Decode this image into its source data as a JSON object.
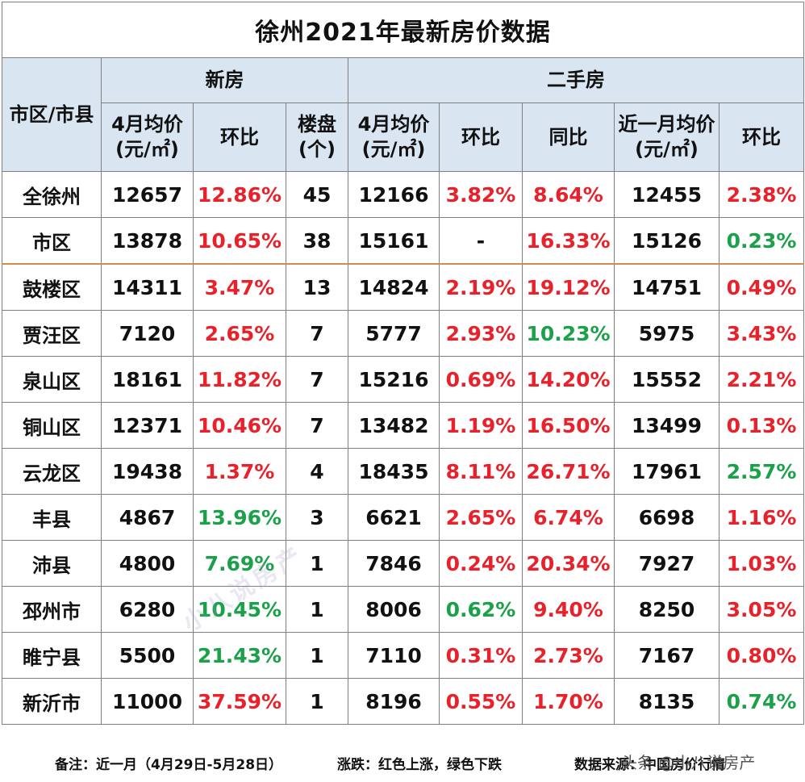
{
  "title": "徐州2021年最新房价数据",
  "header": {
    "region": "市区/市县",
    "new_group": "新房",
    "second_group": "二手房",
    "new_cols": [
      "4月均价(元/㎡)",
      "环比",
      "楼盘(个)"
    ],
    "second_cols": [
      "4月均价(元/㎡)",
      "环比",
      "同比",
      "近一月均价(元/㎡)",
      "环比"
    ]
  },
  "colors": {
    "red": "#e8212a",
    "green": "#1ba14a",
    "header_bg": "#d9e6f2"
  },
  "rows": [
    {
      "name": "全徐州",
      "cells": [
        "12657",
        "12.86%",
        "45",
        "12166",
        "3.82%",
        "8.64%",
        "12455",
        "2.38%"
      ],
      "colors": [
        "black",
        "red",
        "black",
        "black",
        "red",
        "red",
        "black",
        "red"
      ]
    },
    {
      "name": "市区",
      "cells": [
        "13878",
        "10.65%",
        "38",
        "15161",
        "-",
        "16.33%",
        "15126",
        "0.23%"
      ],
      "colors": [
        "black",
        "red",
        "black",
        "black",
        "black",
        "red",
        "black",
        "green"
      ]
    },
    {
      "name": "鼓楼区",
      "cells": [
        "14311",
        "3.47%",
        "13",
        "14824",
        "2.19%",
        "19.12%",
        "14751",
        "0.49%"
      ],
      "colors": [
        "black",
        "red",
        "black",
        "black",
        "red",
        "red",
        "black",
        "red"
      ]
    },
    {
      "name": "贾汪区",
      "cells": [
        "7120",
        "2.65%",
        "7",
        "5777",
        "2.93%",
        "10.23%",
        "5975",
        "3.43%"
      ],
      "colors": [
        "black",
        "red",
        "black",
        "black",
        "red",
        "green",
        "black",
        "red"
      ]
    },
    {
      "name": "泉山区",
      "cells": [
        "18161",
        "11.82%",
        "7",
        "15216",
        "0.69%",
        "14.20%",
        "15552",
        "2.21%"
      ],
      "colors": [
        "black",
        "red",
        "black",
        "black",
        "red",
        "red",
        "black",
        "red"
      ]
    },
    {
      "name": "铜山区",
      "cells": [
        "12371",
        "10.46%",
        "7",
        "13482",
        "1.19%",
        "16.50%",
        "13499",
        "0.13%"
      ],
      "colors": [
        "black",
        "red",
        "black",
        "black",
        "red",
        "red",
        "black",
        "red"
      ]
    },
    {
      "name": "云龙区",
      "cells": [
        "19438",
        "1.37%",
        "4",
        "18435",
        "8.11%",
        "26.71%",
        "17961",
        "2.57%"
      ],
      "colors": [
        "black",
        "red",
        "black",
        "black",
        "red",
        "red",
        "black",
        "green"
      ]
    },
    {
      "name": "丰县",
      "cells": [
        "4867",
        "13.96%",
        "3",
        "6621",
        "2.65%",
        "6.74%",
        "6698",
        "1.16%"
      ],
      "colors": [
        "black",
        "green",
        "black",
        "black",
        "red",
        "red",
        "black",
        "red"
      ]
    },
    {
      "name": "沛县",
      "cells": [
        "4800",
        "7.69%",
        "1",
        "7846",
        "0.24%",
        "20.34%",
        "7927",
        "1.03%"
      ],
      "colors": [
        "black",
        "green",
        "black",
        "black",
        "red",
        "red",
        "black",
        "red"
      ]
    },
    {
      "name": "邳州市",
      "cells": [
        "6280",
        "10.45%",
        "1",
        "8006",
        "0.62%",
        "9.40%",
        "8250",
        "3.05%"
      ],
      "colors": [
        "black",
        "green",
        "black",
        "black",
        "green",
        "red",
        "black",
        "red"
      ]
    },
    {
      "name": "睢宁县",
      "cells": [
        "5500",
        "21.43%",
        "1",
        "7110",
        "0.31%",
        "2.73%",
        "7167",
        "0.80%"
      ],
      "colors": [
        "black",
        "green",
        "black",
        "black",
        "red",
        "red",
        "black",
        "red"
      ]
    },
    {
      "name": "新沂市",
      "cells": [
        "11000",
        "37.59%",
        "1",
        "8196",
        "0.55%",
        "1.70%",
        "8135",
        "0.74%"
      ],
      "colors": [
        "black",
        "red",
        "black",
        "black",
        "red",
        "red",
        "black",
        "green"
      ]
    }
  ],
  "footer": {
    "note": "备注：近一月（4月29日-5月28日）",
    "legend": "涨跌：红色上涨，绿色下跌",
    "source": "数据来源：中国房价行情"
  },
  "watermark": {
    "text": "小八说房产",
    "bottom": "头条 @小八说房产"
  }
}
